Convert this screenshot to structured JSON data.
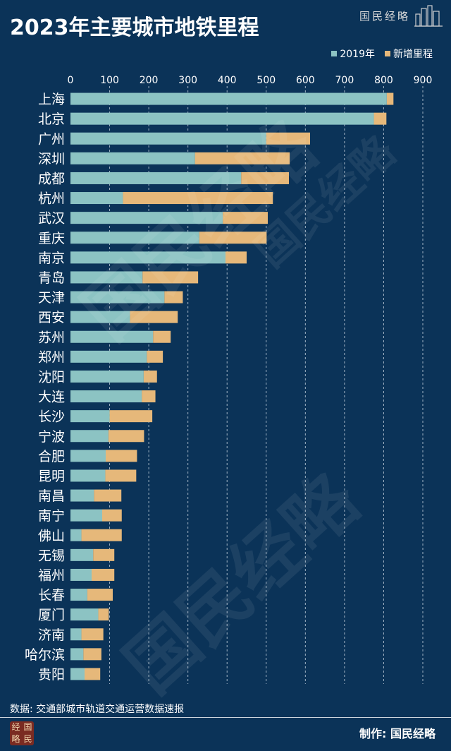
{
  "title": "2023年主要城市地铁里程",
  "brand": {
    "name": "国民经略"
  },
  "footer": {
    "source": "数据: 交通部城市轨道交通运营数据速报",
    "maker": "制作: 国民经略",
    "logo_chars": [
      "经",
      "国",
      "略",
      "民"
    ]
  },
  "watermark_text": "国民经略",
  "colors": {
    "background": "#0b3358",
    "base": "#8cc3c3",
    "added": "#e6b87a",
    "grid": "#c8d4e0"
  },
  "chart_data": {
    "type": "bar",
    "orientation": "horizontal",
    "stacked": true,
    "title": "2023年主要城市地铁里程",
    "xlim": [
      0,
      900
    ],
    "ticks": [
      0,
      100,
      200,
      300,
      400,
      500,
      600,
      700,
      800,
      900
    ],
    "grid": true,
    "legend_position": "top-right",
    "categories": [
      "上海",
      "北京",
      "广州",
      "深圳",
      "成都",
      "杭州",
      "武汉",
      "重庆",
      "南京",
      "青岛",
      "天津",
      "西安",
      "苏州",
      "郑州",
      "沈阳",
      "大连",
      "长沙",
      "宁波",
      "合肥",
      "昆明",
      "南昌",
      "南宁",
      "佛山",
      "无锡",
      "福州",
      "长春",
      "厦门",
      "济南",
      "哈尔滨",
      "贵阳"
    ],
    "series": [
      {
        "name": "2019年",
        "values": [
          808,
          775,
          500,
          318,
          436,
          134,
          389,
          329,
          396,
          184,
          240,
          152,
          211,
          195,
          187,
          182,
          100,
          97,
          90,
          89,
          60,
          81,
          28,
          58,
          54,
          43,
          71,
          28,
          33,
          36
        ]
      },
      {
        "name": "新增里程",
        "values": [
          17,
          32,
          112,
          242,
          122,
          383,
          115,
          172,
          54,
          142,
          47,
          122,
          45,
          41,
          34,
          35,
          109,
          91,
          80,
          79,
          70,
          50,
          103,
          54,
          58,
          65,
          27,
          56,
          46,
          40
        ]
      }
    ]
  }
}
